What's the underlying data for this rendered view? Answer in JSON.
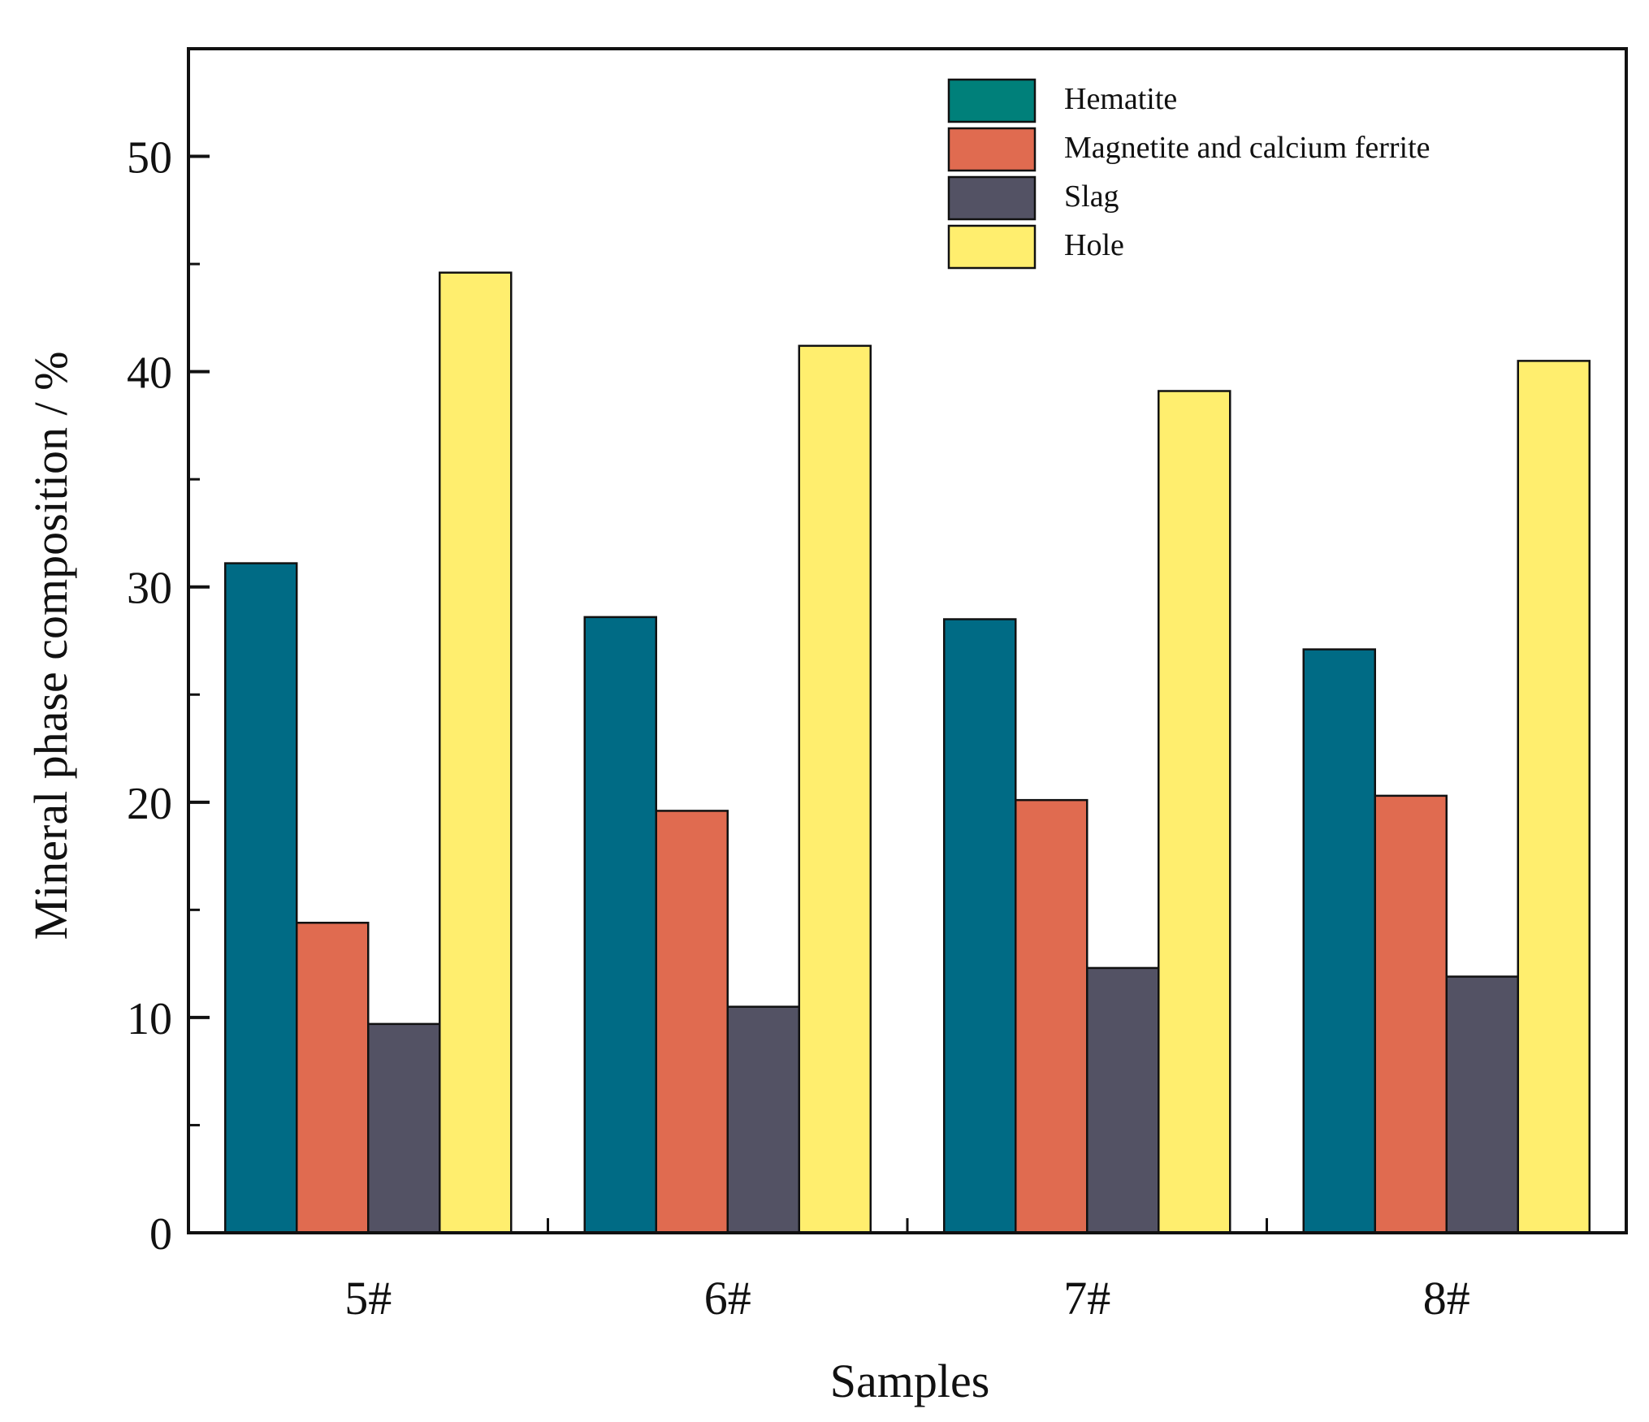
{
  "chart_data": {
    "type": "bar",
    "title": "",
    "xlabel": "Samples",
    "ylabel": "Mineral phase composition / %",
    "categories": [
      "5#",
      "6#",
      "7#",
      "8#"
    ],
    "series": [
      {
        "name": "Hematite",
        "values": [
          31.1,
          28.6,
          28.5,
          27.1
        ]
      },
      {
        "name": "Magnetite and calcium ferrite",
        "values": [
          14.4,
          19.6,
          20.1,
          20.3
        ]
      },
      {
        "name": "Slag",
        "values": [
          9.7,
          10.5,
          12.3,
          11.9
        ]
      },
      {
        "name": "Hole",
        "values": [
          44.6,
          41.2,
          39.1,
          40.5
        ]
      }
    ],
    "ylim": [
      0,
      55
    ],
    "yticks": [
      0,
      10,
      20,
      30,
      40,
      50
    ],
    "y_minor_step": 5,
    "grid": false,
    "legend_position": "top-right"
  },
  "colors": {
    "bars": [
      "#006b85",
      "#e06b50",
      "#535264",
      "#ffee6e"
    ],
    "legend_swatches": [
      "#00807a",
      "#e06b50",
      "#535264",
      "#ffee6e"
    ],
    "axis": "#111111",
    "bar_edge": "#111111"
  }
}
